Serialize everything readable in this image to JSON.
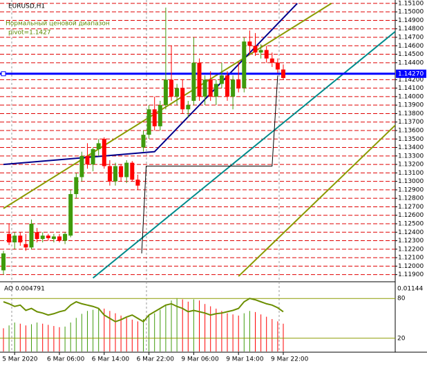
{
  "chart_data": {
    "type": "candlestick",
    "title": "EURUSD,H1",
    "subtitle": "Нормальный ценовой диапазон",
    "pivot_text": "pivot=1.1427",
    "pivot": 1.1427,
    "pivot_label": "1.14270",
    "ylim": [
      1.1184,
      1.1514
    ],
    "yticks": [
      {
        "value": 1.119,
        "label": "1.11900"
      },
      {
        "value": 1.12,
        "label": "1.12000"
      },
      {
        "value": 1.121,
        "label": "1.12100"
      },
      {
        "value": 1.122,
        "label": "1.12200"
      },
      {
        "value": 1.123,
        "label": "1.12300"
      },
      {
        "value": 1.124,
        "label": "1.12400"
      },
      {
        "value": 1.125,
        "label": "1.12500"
      },
      {
        "value": 1.126,
        "label": "1.12600"
      },
      {
        "value": 1.127,
        "label": "1.12700"
      },
      {
        "value": 1.128,
        "label": "1.12800"
      },
      {
        "value": 1.129,
        "label": "1.12900"
      },
      {
        "value": 1.13,
        "label": "1.13000"
      },
      {
        "value": 1.131,
        "label": "1.13100"
      },
      {
        "value": 1.132,
        "label": "1.13200"
      },
      {
        "value": 1.133,
        "label": "1.13300"
      },
      {
        "value": 1.134,
        "label": "1.13400"
      },
      {
        "value": 1.135,
        "label": "1.13500"
      },
      {
        "value": 1.136,
        "label": "1.13600"
      },
      {
        "value": 1.137,
        "label": "1.13700"
      },
      {
        "value": 1.138,
        "label": "1.13800"
      },
      {
        "value": 1.139,
        "label": "1.13900"
      },
      {
        "value": 1.14,
        "label": "1.14000"
      },
      {
        "value": 1.141,
        "label": "1.14100"
      },
      {
        "value": 1.142,
        "label": "1.14200"
      },
      {
        "value": 1.144,
        "label": "1.14400"
      },
      {
        "value": 1.145,
        "label": "1.14500"
      },
      {
        "value": 1.146,
        "label": "1.14600"
      },
      {
        "value": 1.147,
        "label": "1.14700"
      },
      {
        "value": 1.148,
        "label": "1.14800"
      },
      {
        "value": 1.149,
        "label": "1.14900"
      },
      {
        "value": 1.15,
        "label": "1.15000"
      },
      {
        "value": 1.151,
        "label": "1.15100"
      }
    ],
    "grid": true,
    "up_color": "#3f9b0b",
    "down_color": "#ff0000",
    "categories": [
      null,
      null,
      "5 Mar 2020",
      null,
      null,
      null,
      null,
      null,
      null,
      null,
      "6 Mar 06:00",
      null,
      null,
      null,
      null,
      null,
      null,
      null,
      "6 Mar 14:00",
      null,
      null,
      null,
      null,
      null,
      null,
      null,
      "6 Mar 22:00",
      null,
      null,
      null,
      null,
      null,
      null,
      null,
      "9 Mar 06:00",
      null,
      null,
      null,
      null,
      null,
      null,
      null,
      "9 Mar 14:00",
      null,
      null,
      null,
      null,
      null,
      null,
      null,
      "9 Mar 22:00"
    ],
    "open": [
      1.1195,
      1.1238,
      1.1228,
      1.1236,
      1.1226,
      1.1222,
      1.124,
      1.1232,
      1.1236,
      1.1232,
      1.1235,
      1.123,
      1.1236,
      1.1285,
      1.1305,
      1.133,
      1.132,
      1.1338,
      1.135,
      1.1318,
      1.13,
      1.1318,
      1.1305,
      1.1322,
      1.1302,
      1.134,
      1.1355,
      1.1385,
      1.1365,
      1.139,
      1.142,
      1.14,
      1.141,
      1.1385,
      1.1395,
      1.144,
      1.14,
      1.142,
      1.14,
      1.1415,
      1.1425,
      1.14,
      1.142,
      1.141,
      1.1465,
      1.146,
      1.1452,
      1.1455,
      1.1445,
      1.144,
      1.1432
    ],
    "high": [
      1.1218,
      1.125,
      1.124,
      1.124,
      1.1238,
      1.1255,
      1.1245,
      1.124,
      1.1238,
      1.1238,
      1.1238,
      1.124,
      1.129,
      1.131,
      1.1335,
      1.1345,
      1.134,
      1.135,
      1.1352,
      1.1325,
      1.1322,
      1.132,
      1.1325,
      1.1324,
      1.1308,
      1.136,
      1.139,
      1.14,
      1.1395,
      1.1505,
      1.146,
      1.1415,
      1.142,
      1.1395,
      1.147,
      1.1445,
      1.1425,
      1.143,
      1.142,
      1.144,
      1.143,
      1.1425,
      1.144,
      1.147,
      1.1478,
      1.1475,
      1.1462,
      1.146,
      1.1452,
      1.1445,
      1.1438
    ],
    "low": [
      1.119,
      1.1225,
      1.122,
      1.1224,
      1.1218,
      1.122,
      1.1228,
      1.1228,
      1.123,
      1.1228,
      1.1228,
      1.1226,
      1.1234,
      1.128,
      1.13,
      1.1315,
      1.1312,
      1.133,
      1.1315,
      1.1295,
      1.1295,
      1.13,
      1.1298,
      1.13,
      1.129,
      1.1335,
      1.135,
      1.136,
      1.136,
      1.1385,
      1.1395,
      1.139,
      1.138,
      1.1375,
      1.139,
      1.1395,
      1.139,
      1.1395,
      1.139,
      1.141,
      1.1395,
      1.1385,
      1.1405,
      1.1405,
      1.145,
      1.1448,
      1.1445,
      1.144,
      1.1435,
      1.1428,
      1.142
    ],
    "close": [
      1.1215,
      1.1228,
      1.1236,
      1.1228,
      1.1222,
      1.125,
      1.1232,
      1.1236,
      1.1233,
      1.1235,
      1.123,
      1.1238,
      1.1285,
      1.1305,
      1.133,
      1.132,
      1.1338,
      1.1345,
      1.1318,
      1.13,
      1.1318,
      1.1305,
      1.1322,
      1.1302,
      1.1295,
      1.1355,
      1.1385,
      1.1365,
      1.139,
      1.142,
      1.14,
      1.141,
      1.1385,
      1.139,
      1.144,
      1.14,
      1.142,
      1.14,
      1.1415,
      1.1425,
      1.14,
      1.142,
      1.141,
      1.1465,
      1.146,
      1.1452,
      1.1455,
      1.1445,
      1.144,
      1.1432,
      1.1422
    ],
    "channels": [
      {
        "color": "#8b9a00",
        "points": [
          [
            0,
            1.1268
          ],
          [
            58.6,
            1.151
          ]
        ]
      },
      {
        "color": "#8b9a00",
        "points": [
          [
            42,
            1.1188
          ],
          [
            70.6,
            1.137
          ]
        ]
      },
      {
        "color": "#008b8b",
        "points": [
          [
            16,
            1.1186
          ],
          [
            70.6,
            1.148
          ]
        ]
      },
      {
        "color": "#00008b",
        "points": [
          [
            0,
            1.132
          ],
          [
            27,
            1.1335
          ],
          [
            52.5,
            1.151
          ]
        ]
      },
      {
        "color": "#000000",
        "points": [
          [
            24.7,
            1.1215
          ],
          [
            25.5,
            1.1318
          ],
          [
            48,
            1.1318
          ],
          [
            49,
            1.1425
          ]
        ]
      }
    ],
    "ao_label": "AO 0.004791",
    "ao_top_label": "0.01144",
    "ao_ylim": [
      0,
      0.01144
    ],
    "ao": [
      0.004,
      0.0045,
      0.005,
      0.0048,
      0.0045,
      0.0047,
      0.005,
      0.0048,
      0.0046,
      0.0044,
      0.0042,
      0.0043,
      0.005,
      0.0058,
      0.0065,
      0.007,
      0.0072,
      0.0075,
      0.0074,
      0.007,
      0.0066,
      0.0062,
      0.0058,
      0.0055,
      0.0052,
      0.0056,
      0.0062,
      0.0066,
      0.0072,
      0.008,
      0.0088,
      0.0092,
      0.009,
      0.0086,
      0.009,
      0.0088,
      0.0082,
      0.0078,
      0.0074,
      0.007,
      0.0066,
      0.0064,
      0.0062,
      0.0066,
      0.007,
      0.0068,
      0.0064,
      0.006,
      0.0056,
      0.0052,
      0.0048
    ],
    "stoch_ylim": [
      0,
      100
    ],
    "stoch_levels": [
      80,
      20
    ],
    "stoch": [
      75,
      72,
      68,
      70,
      62,
      65,
      60,
      58,
      55,
      57,
      60,
      62,
      70,
      75,
      72,
      70,
      68,
      65,
      55,
      50,
      45,
      48,
      52,
      55,
      50,
      45,
      55,
      60,
      65,
      70,
      72,
      68,
      65,
      60,
      62,
      60,
      58,
      55,
      57,
      58,
      60,
      62,
      65,
      75,
      80,
      78,
      75,
      72,
      70,
      66,
      60
    ]
  }
}
